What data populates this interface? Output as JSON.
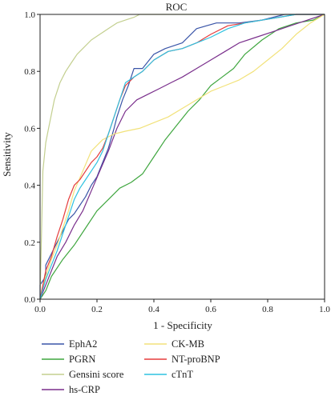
{
  "chart_data": {
    "type": "line",
    "title": "ROC",
    "xlabel": "1 - Specificity",
    "ylabel": "Sensitivity",
    "xlim": [
      0,
      1
    ],
    "ylim": [
      0,
      1
    ],
    "xticks": [
      "0.0",
      "0.2",
      "0.4",
      "0.6",
      "0.8",
      "1.0"
    ],
    "yticks": [
      "0.0",
      "0.2",
      "0.4",
      "0.6",
      "0.8",
      "1.0"
    ],
    "grid": false,
    "legend_position": "bottom",
    "series": [
      {
        "name": "EphA2",
        "color": "#3a55a8",
        "x": [
          0,
          0,
          0.02,
          0.02,
          0.04,
          0.06,
          0.08,
          0.1,
          0.12,
          0.14,
          0.16,
          0.18,
          0.2,
          0.22,
          0.24,
          0.26,
          0.27,
          0.29,
          0.31,
          0.33,
          0.36,
          0.4,
          0.44,
          0.5,
          0.55,
          0.62,
          0.7,
          0.78,
          0.86,
          1.0
        ],
        "y": [
          0,
          0.05,
          0.08,
          0.12,
          0.16,
          0.2,
          0.24,
          0.28,
          0.3,
          0.33,
          0.36,
          0.4,
          0.43,
          0.48,
          0.53,
          0.6,
          0.64,
          0.7,
          0.75,
          0.81,
          0.81,
          0.86,
          0.88,
          0.9,
          0.95,
          0.97,
          0.97,
          0.98,
          1.0,
          1.0
        ]
      },
      {
        "name": "PGRN",
        "color": "#3fa63f",
        "x": [
          0,
          0.02,
          0.04,
          0.08,
          0.12,
          0.16,
          0.2,
          0.24,
          0.28,
          0.32,
          0.36,
          0.4,
          0.44,
          0.48,
          0.52,
          0.56,
          0.6,
          0.64,
          0.68,
          0.72,
          0.78,
          0.84,
          0.9,
          0.96,
          1.0
        ],
        "y": [
          0,
          0.03,
          0.08,
          0.14,
          0.19,
          0.25,
          0.31,
          0.35,
          0.39,
          0.41,
          0.44,
          0.5,
          0.56,
          0.61,
          0.66,
          0.7,
          0.75,
          0.78,
          0.81,
          0.86,
          0.91,
          0.95,
          0.97,
          0.98,
          1.0
        ]
      },
      {
        "name": "Gensini score",
        "color": "#c3cf8f",
        "x": [
          0,
          0.01,
          0.02,
          0.03,
          0.04,
          0.05,
          0.06,
          0.07,
          0.09,
          0.11,
          0.13,
          0.15,
          0.18,
          0.21,
          0.24,
          0.27,
          0.3,
          0.33,
          0.35,
          1.0
        ],
        "y": [
          0,
          0.45,
          0.55,
          0.6,
          0.65,
          0.7,
          0.73,
          0.76,
          0.8,
          0.83,
          0.86,
          0.88,
          0.91,
          0.93,
          0.95,
          0.97,
          0.98,
          0.99,
          1.0,
          1.0
        ]
      },
      {
        "name": "hs-CRP",
        "color": "#7a2f8c",
        "x": [
          0,
          0.02,
          0.04,
          0.06,
          0.09,
          0.12,
          0.15,
          0.18,
          0.21,
          0.24,
          0.27,
          0.3,
          0.34,
          0.38,
          0.42,
          0.46,
          0.5,
          0.55,
          0.6,
          0.65,
          0.7,
          0.76,
          0.82,
          0.88,
          0.94,
          1.0
        ],
        "y": [
          0,
          0.05,
          0.1,
          0.15,
          0.2,
          0.26,
          0.31,
          0.38,
          0.45,
          0.52,
          0.6,
          0.66,
          0.7,
          0.72,
          0.74,
          0.76,
          0.78,
          0.81,
          0.84,
          0.87,
          0.9,
          0.92,
          0.94,
          0.96,
          0.98,
          1.0
        ]
      },
      {
        "name": "CK-MB",
        "color": "#f2e27a",
        "x": [
          0,
          0.02,
          0.04,
          0.06,
          0.08,
          0.1,
          0.12,
          0.15,
          0.18,
          0.22,
          0.26,
          0.3,
          0.35,
          0.4,
          0.45,
          0.5,
          0.55,
          0.6,
          0.65,
          0.7,
          0.75,
          0.8,
          0.85,
          0.9,
          0.95,
          1.0
        ],
        "y": [
          0,
          0.08,
          0.14,
          0.19,
          0.25,
          0.31,
          0.38,
          0.45,
          0.52,
          0.56,
          0.58,
          0.59,
          0.6,
          0.62,
          0.64,
          0.67,
          0.7,
          0.73,
          0.75,
          0.77,
          0.8,
          0.84,
          0.88,
          0.93,
          0.97,
          1.0
        ]
      },
      {
        "name": "NT-proBNP",
        "color": "#e53c3c",
        "x": [
          0,
          0.01,
          0.02,
          0.04,
          0.06,
          0.08,
          0.1,
          0.12,
          0.14,
          0.16,
          0.18,
          0.2,
          0.22,
          0.24,
          0.26,
          0.28,
          0.3,
          0.33,
          0.36,
          0.4,
          0.45,
          0.5,
          0.55,
          0.6,
          0.66,
          0.72,
          0.78,
          0.84,
          0.9,
          1.0
        ],
        "y": [
          0,
          0.05,
          0.1,
          0.15,
          0.22,
          0.28,
          0.35,
          0.4,
          0.42,
          0.45,
          0.48,
          0.5,
          0.53,
          0.58,
          0.64,
          0.7,
          0.75,
          0.78,
          0.8,
          0.84,
          0.87,
          0.88,
          0.9,
          0.93,
          0.96,
          0.97,
          0.98,
          0.99,
          1.0,
          1.0
        ]
      },
      {
        "name": "cTnT",
        "color": "#2ec2e0",
        "x": [
          0,
          0.02,
          0.04,
          0.06,
          0.08,
          0.1,
          0.12,
          0.14,
          0.16,
          0.18,
          0.2,
          0.22,
          0.24,
          0.26,
          0.28,
          0.3,
          0.33,
          0.36,
          0.4,
          0.45,
          0.5,
          0.55,
          0.6,
          0.66,
          0.72,
          0.78,
          0.84,
          0.9,
          1.0
        ],
        "y": [
          0,
          0.07,
          0.12,
          0.17,
          0.23,
          0.29,
          0.35,
          0.39,
          0.42,
          0.45,
          0.48,
          0.52,
          0.58,
          0.64,
          0.7,
          0.76,
          0.78,
          0.8,
          0.84,
          0.87,
          0.88,
          0.9,
          0.92,
          0.95,
          0.97,
          0.98,
          0.99,
          1.0,
          1.0
        ]
      }
    ]
  }
}
